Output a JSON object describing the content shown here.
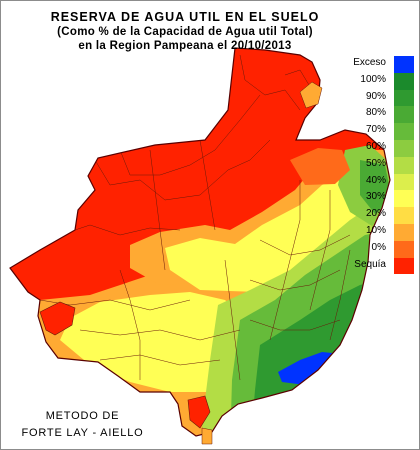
{
  "title": {
    "line1": "RESERVA DE AGUA UTIL EN EL SUELO",
    "line2": "(Como % de la Capacidad de Agua util Total)",
    "line3": "en la Region Pampeana el 20/10/2013"
  },
  "legend": [
    {
      "label": "Exceso",
      "color": "#0033ff"
    },
    {
      "label": "100%",
      "color": "#1b8a2c"
    },
    {
      "label": "90%",
      "color": "#2f9a30"
    },
    {
      "label": "80%",
      "color": "#4aaa34"
    },
    {
      "label": "70%",
      "color": "#66bb3a"
    },
    {
      "label": "60%",
      "color": "#8ccc40"
    },
    {
      "label": "50%",
      "color": "#b3dd45"
    },
    {
      "label": "40%",
      "color": "#dcee4c"
    },
    {
      "label": "30%",
      "color": "#ffff55"
    },
    {
      "label": "20%",
      "color": "#ffdd44"
    },
    {
      "label": "10%",
      "color": "#ffaa33"
    },
    {
      "label": "0%",
      "color": "#ff6a1a"
    },
    {
      "label": "Sequía",
      "color": "#ff2200"
    }
  ],
  "method": {
    "line1": "METODO DE",
    "line2": "FORTE LAY - AIELLO"
  }
}
